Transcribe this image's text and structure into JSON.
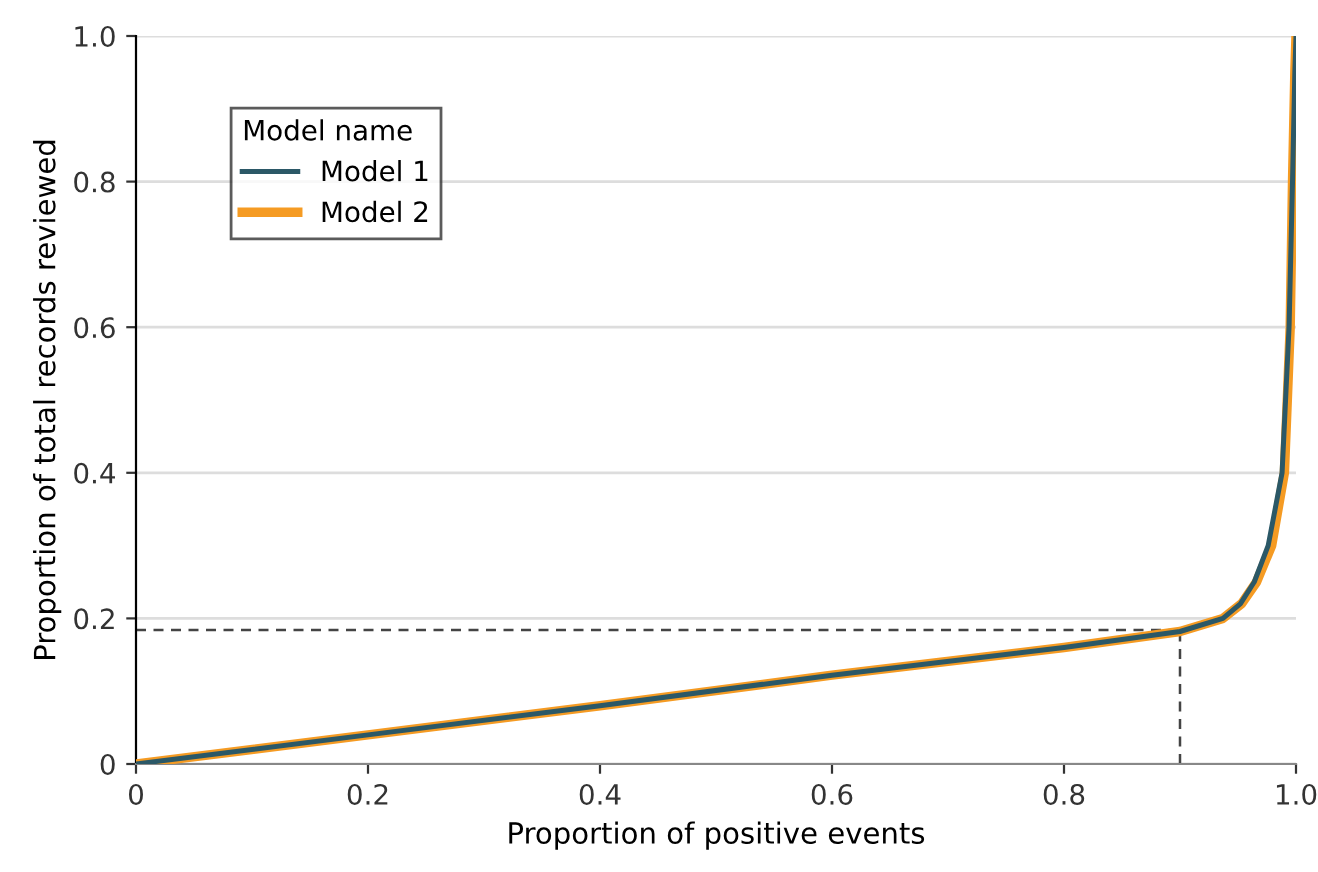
{
  "chart_data": {
    "type": "line",
    "xlabel": "Proportion of positive events",
    "ylabel": "Proportion of total records reviewed",
    "legend_title": "Model name",
    "legend": "top left",
    "grid": "y",
    "xlim": [
      0,
      1
    ],
    "ylim": [
      0,
      1
    ],
    "xticks": [
      {
        "value": 0,
        "label": "0"
      },
      0.2,
      0.4,
      0.6,
      0.8,
      {
        "value": 1,
        "label": "1.0"
      }
    ],
    "yticks": [
      {
        "value": 0,
        "label": "0"
      },
      0.2,
      0.4,
      0.6,
      0.8,
      {
        "value": 1,
        "label": "1.0"
      }
    ],
    "series": [
      {
        "name": "Model 2",
        "color": "#f59b23",
        "x": [
          0,
          0.2,
          0.4,
          0.6,
          0.8,
          0.9,
          0.937,
          0.953,
          0.966,
          0.979,
          0.99,
          0.995,
          0.997,
          0.999,
          1.0
        ],
        "values": [
          0,
          0.04,
          0.08,
          0.122,
          0.16,
          0.182,
          0.2,
          0.22,
          0.25,
          0.3,
          0.4,
          0.6,
          0.8,
          0.95,
          1.0
        ]
      },
      {
        "name": "Model 1",
        "color": "#2b5867",
        "x": [
          0,
          0.2,
          0.4,
          0.6,
          0.8,
          0.9,
          0.937,
          0.952,
          0.964,
          0.976,
          0.988,
          0.994,
          0.997,
          0.999,
          1.0
        ],
        "values": [
          0,
          0.04,
          0.08,
          0.122,
          0.16,
          0.182,
          0.2,
          0.22,
          0.25,
          0.3,
          0.4,
          0.6,
          0.8,
          0.95,
          1.0
        ]
      }
    ],
    "ref_lines": [
      {
        "axis": "x",
        "value": 0.9,
        "line_style": "dashed",
        "color": "#444444"
      },
      {
        "axis": "y",
        "value": 0.184,
        "line_style": "dashed",
        "color": "#444444"
      }
    ]
  }
}
